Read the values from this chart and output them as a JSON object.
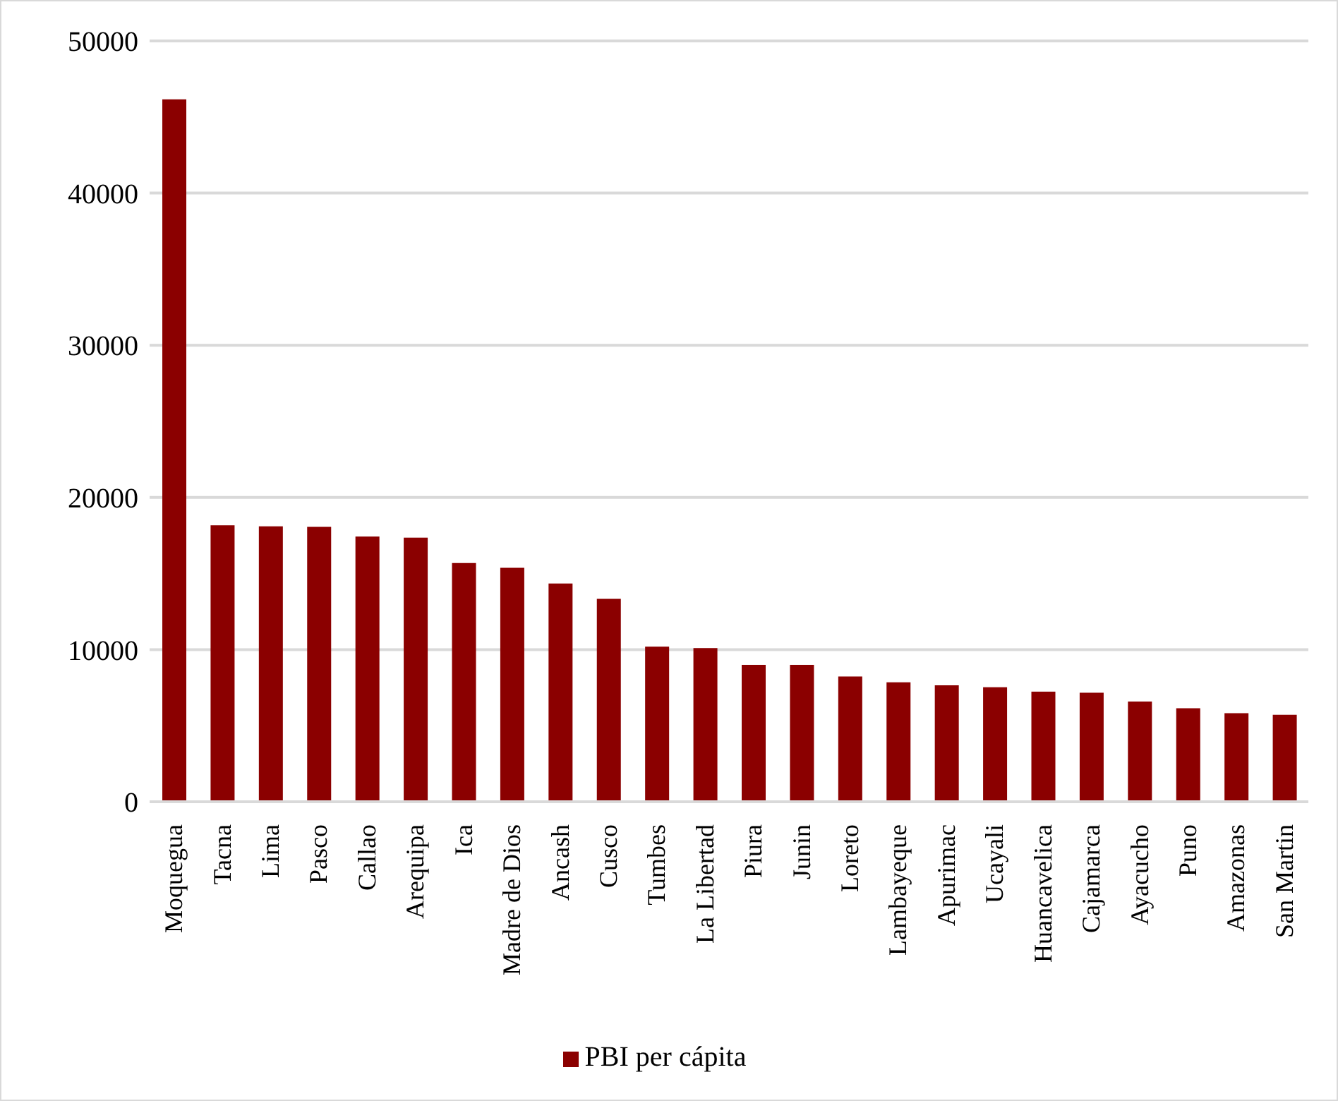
{
  "chart_data": {
    "type": "bar",
    "categories": [
      "Moquegua",
      "Tacna",
      "Lima",
      "Pasco",
      "Callao",
      "Arequipa",
      "Ica",
      "Madre de Dios",
      "Ancash",
      "Cusco",
      "Tumbes",
      "La Libertad",
      "Piura",
      "Junin",
      "Loreto",
      "Lambayeque",
      "Apurimac",
      "Ucayali",
      "Huancavelica",
      "Cajamarca",
      "Ayacucho",
      "Puno",
      "Amazonas",
      "San Martin"
    ],
    "series": [
      {
        "name": "PBI per cápita",
        "color": "#8b0000",
        "values": [
          46160,
          18170,
          18100,
          18070,
          17430,
          17360,
          15690,
          15370,
          14340,
          13340,
          10190,
          10100,
          9000,
          9000,
          8230,
          7850,
          7650,
          7520,
          7230,
          7170,
          6590,
          6140,
          5820,
          5720
        ]
      }
    ],
    "ylim": [
      0,
      50000
    ],
    "yticks": [
      0,
      10000,
      20000,
      30000,
      40000,
      50000
    ],
    "grid": "y",
    "legend": "bottom"
  }
}
